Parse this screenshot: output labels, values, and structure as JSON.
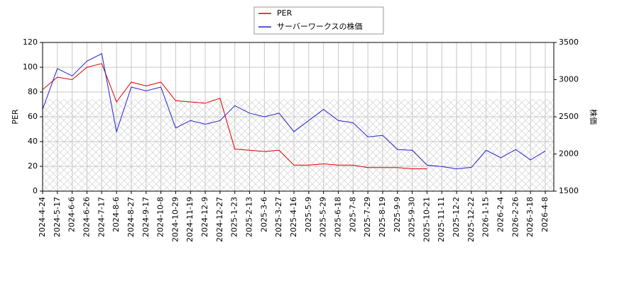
{
  "chart_data": {
    "type": "line",
    "x": [
      "2024-4-24",
      "2024-5-17",
      "2024-6-6",
      "2024-6-26",
      "2024-7-17",
      "2024-8-6",
      "2024-8-27",
      "2024-9-17",
      "2024-10-8",
      "2024-10-29",
      "2024-11-19",
      "2024-12-9",
      "2024-12-27",
      "2025-1-23",
      "2025-2-13",
      "2025-3-6",
      "2025-3-27",
      "2025-4-16",
      "2025-5-9",
      "2025-5-29",
      "2025-6-18",
      "2025-7-8",
      "2025-7-29",
      "2025-8-19",
      "2025-9-9",
      "2025-9-30",
      "2025-10-21",
      "2025-11-11",
      "2025-12-2",
      "2025-12-22",
      "2026-1-15",
      "2026-2-4",
      "2026-2-26",
      "2026-3-18",
      "2026-4-8"
    ],
    "series": [
      {
        "name": "PER",
        "color": "#dd0000",
        "axis": "y",
        "values": [
          82,
          92,
          90,
          100,
          103,
          72,
          88,
          85,
          88,
          73,
          72,
          71,
          75,
          34,
          33,
          32,
          33,
          21,
          21,
          22,
          21,
          21,
          19,
          19,
          19,
          18,
          18,
          null,
          null,
          null,
          null,
          null,
          null,
          null,
          null
        ]
      },
      {
        "name": "サーバーワークスの株価",
        "color": "#2222cc",
        "axis": "y2",
        "values": [
          2600,
          3150,
          3050,
          3250,
          3350,
          2300,
          2900,
          2850,
          2900,
          2350,
          2450,
          2400,
          2450,
          2650,
          2550,
          2500,
          2550,
          2300,
          2450,
          2600,
          2450,
          2420,
          2230,
          2250,
          2060,
          2050,
          1850,
          1830,
          1800,
          1820,
          2050,
          1950,
          2060,
          1920,
          2040
        ]
      }
    ],
    "ylabel": "PER",
    "y2label": "株価",
    "ylim": [
      0,
      120
    ],
    "yticks": [
      0,
      20,
      40,
      60,
      80,
      100,
      120
    ],
    "y2lim": [
      1500,
      3500
    ],
    "y2ticks": [
      1500,
      2000,
      2500,
      3000,
      3500
    ],
    "grid": true,
    "legend": "top"
  }
}
